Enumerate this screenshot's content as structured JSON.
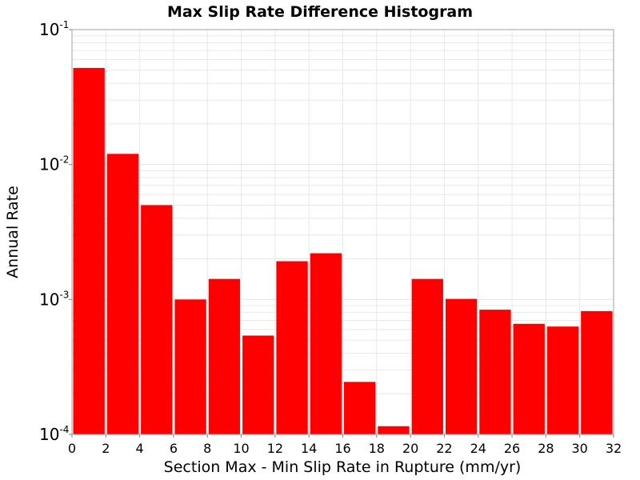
{
  "chart_data": {
    "type": "bar",
    "title": "Max Slip Rate Difference Histogram",
    "xlabel": "Section Max - Min Slip Rate in Rupture (mm/yr)",
    "ylabel": "Annual Rate",
    "y_scale": "log",
    "xlim": [
      0,
      32
    ],
    "ylim": [
      0.0001,
      0.1
    ],
    "grid": true,
    "x_ticks": [
      "0",
      "2",
      "4",
      "6",
      "8",
      "10",
      "12",
      "14",
      "16",
      "18",
      "20",
      "22",
      "24",
      "26",
      "28",
      "30",
      "32"
    ],
    "y_ticks": [
      {
        "base": "10",
        "exp": "-4"
      },
      {
        "base": "10",
        "exp": "-3"
      },
      {
        "base": "10",
        "exp": "-2"
      },
      {
        "base": "10",
        "exp": "-1"
      }
    ],
    "bin_width": 2,
    "bins": [
      {
        "x": 1,
        "value": 0.052
      },
      {
        "x": 3,
        "value": 0.012
      },
      {
        "x": 5,
        "value": 0.005
      },
      {
        "x": 7,
        "value": 0.001
      },
      {
        "x": 9,
        "value": 0.00142
      },
      {
        "x": 11,
        "value": 0.00054
      },
      {
        "x": 13,
        "value": 0.00192
      },
      {
        "x": 15,
        "value": 0.0022
      },
      {
        "x": 17,
        "value": 0.000245
      },
      {
        "x": 19,
        "value": 0.000115
      },
      {
        "x": 21,
        "value": 0.00142
      },
      {
        "x": 23,
        "value": 0.00101
      },
      {
        "x": 25,
        "value": 0.00084
      },
      {
        "x": 27,
        "value": 0.00066
      },
      {
        "x": 29,
        "value": 0.00063
      },
      {
        "x": 31,
        "value": 0.00082
      }
    ],
    "colors": {
      "bar": "#ff0000",
      "bar_gap": "#ffffff",
      "grid": "#e8e8e8",
      "plot_border": "#a0a0a0"
    }
  }
}
